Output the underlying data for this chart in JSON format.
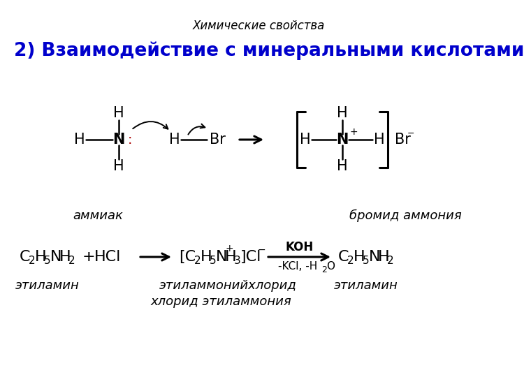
{
  "title_top": "Химические свойства",
  "title_main": "2) Взаимодействие с минеральными кислотами",
  "bg_color": "#ffffff",
  "title_color": "#0000cc",
  "black": "#000000",
  "red": "#aa0000",
  "label_ammiak": "аммиак",
  "label_bromid": "бромид аммония",
  "label_ethylamin1": "этиламин",
  "label_ethylammoniy": "этиламмонийхлорид",
  "label_ethylamin2": "этиламин",
  "label_hlorid": "хлорид этиламмония"
}
